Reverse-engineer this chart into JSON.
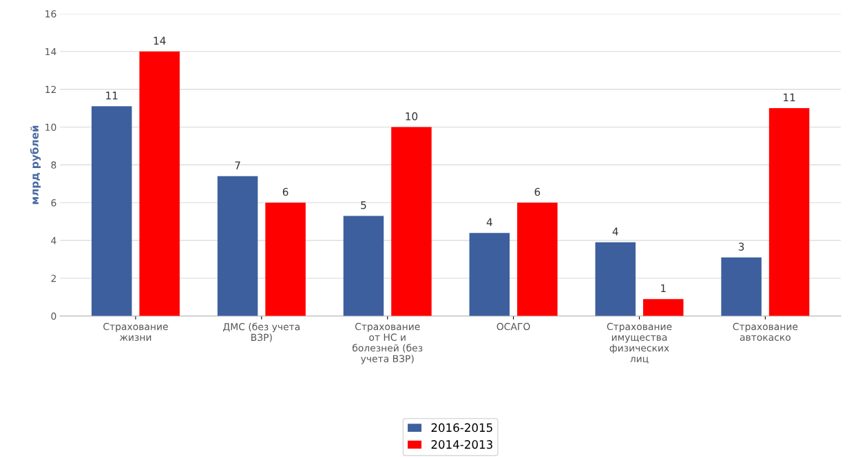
{
  "chart_data": {
    "type": "bar",
    "ylabel": "млрд рублей",
    "categories": [
      "Страхование\nжизни",
      "ДМС (без учета\nВЗР)",
      "Страхование\nот НС и\nболезней (без\nучета ВЗР)",
      "ОСАГО",
      "Страхование\nимущества\nфизических\nлиц",
      "Страхование\nавтокаско"
    ],
    "series": [
      {
        "name": "2016-2015",
        "color": "#3d5f9e",
        "values": [
          11.1,
          7.4,
          5.3,
          4.4,
          3.9,
          3.1
        ],
        "value_labels": [
          "11",
          "7",
          "5",
          "4",
          "4",
          "3"
        ]
      },
      {
        "name": "2014-2013",
        "color": "#ff0000",
        "values": [
          14,
          6,
          10,
          6,
          0.9,
          11
        ],
        "value_labels": [
          "14",
          "6",
          "10",
          "6",
          "1",
          "11"
        ]
      }
    ],
    "ylim": [
      0,
      16
    ],
    "yticks": [
      0,
      2,
      4,
      6,
      8,
      10,
      12,
      14,
      16
    ],
    "grid": "y",
    "legend": "bottom"
  }
}
